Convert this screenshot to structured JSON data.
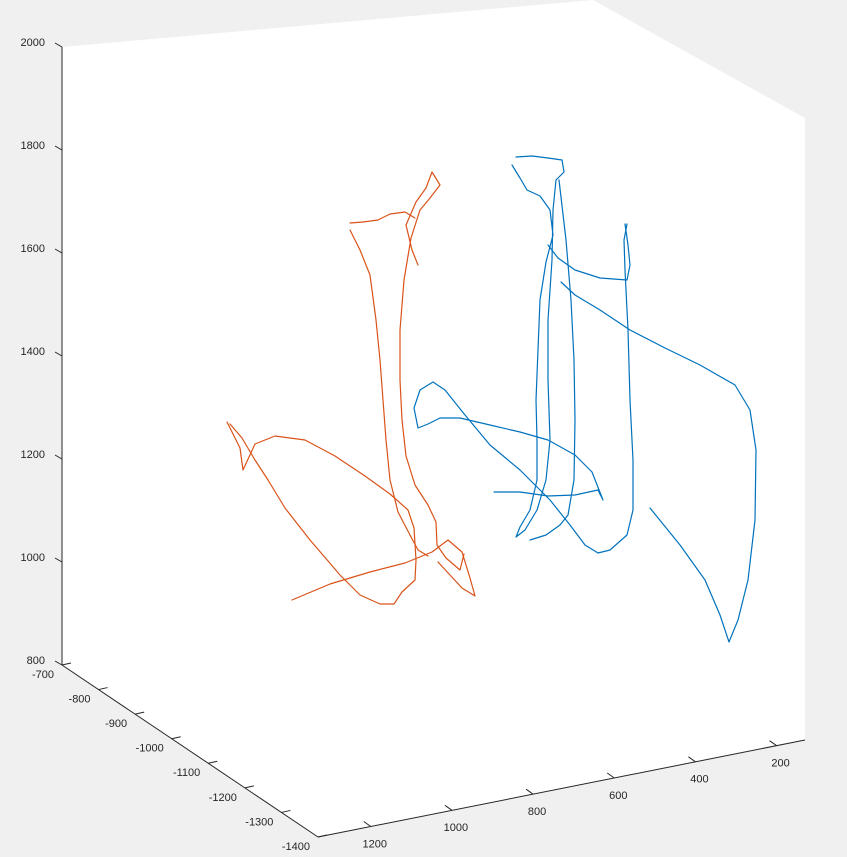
{
  "chart_data": {
    "type": "line3d",
    "title": "",
    "xlabel": "",
    "ylabel": "",
    "zlabel": "",
    "grid": false,
    "axes": {
      "x": {
        "ticks": [
          1200,
          1000,
          800,
          600,
          400,
          200
        ],
        "labels": [
          "1200",
          "1000",
          "800",
          "600",
          "400",
          "200"
        ],
        "lim": [
          1330,
          130
        ]
      },
      "y": {
        "ticks": [
          -700,
          -800,
          -900,
          -1000,
          -1100,
          -1200,
          -1300,
          -1400
        ],
        "labels": [
          "-700",
          "-800",
          "-900",
          "-1000",
          "-1100",
          "-1200",
          "-1300",
          "-1400"
        ],
        "lim": [
          -700,
          -1400
        ]
      },
      "z": {
        "ticks": [
          800,
          1000,
          1200,
          1400,
          1600,
          1800,
          2000
        ],
        "labels": [
          "800",
          "1000",
          "1200",
          "1400",
          "1600",
          "1800",
          "2000"
        ],
        "lim": [
          800,
          2000
        ]
      }
    },
    "series": [
      {
        "color": "#d95319",
        "paths": [
          [
            [
              227,
              422
            ],
            [
              240,
              448
            ],
            [
              243,
              470
            ],
            [
              255,
              444
            ],
            [
              275,
              436
            ],
            [
              305,
              440
            ],
            [
              335,
              456
            ],
            [
              365,
              476
            ],
            [
              390,
              494
            ],
            [
              408,
              510
            ],
            [
              414,
              528
            ],
            [
              416,
              560
            ],
            [
              415,
              580
            ],
            [
              402,
              592
            ],
            [
              394,
              604
            ],
            [
              380,
              604
            ],
            [
              360,
              595
            ],
            [
              340,
              575
            ],
            [
              310,
              540
            ],
            [
              285,
              508
            ],
            [
              268,
              480
            ],
            [
              255,
              460
            ],
            [
              242,
              438
            ],
            [
              230,
              424
            ]
          ],
          [
            [
              292,
              600
            ],
            [
              330,
              584
            ],
            [
              370,
              572
            ],
            [
              405,
              563
            ],
            [
              432,
              552
            ],
            [
              448,
              540
            ],
            [
              462,
              552
            ],
            [
              470,
              578
            ],
            [
              475,
              596
            ],
            [
              462,
              588
            ],
            [
              450,
              575
            ],
            [
              438,
              562
            ]
          ],
          [
            [
              350,
              230
            ],
            [
              360,
              250
            ],
            [
              370,
              275
            ],
            [
              376,
              320
            ],
            [
              380,
              360
            ],
            [
              383,
              400
            ],
            [
              386,
              440
            ],
            [
              390,
              480
            ],
            [
              398,
              512
            ],
            [
              410,
              535
            ],
            [
              418,
              550
            ],
            [
              428,
              556
            ]
          ],
          [
            [
              350,
              223
            ],
            [
              363,
              222
            ],
            [
              378,
              220
            ],
            [
              390,
              214
            ],
            [
              405,
              212
            ],
            [
              415,
              218
            ]
          ],
          [
            [
              418,
              265
            ],
            [
              412,
              250
            ],
            [
              406,
              225
            ],
            [
              416,
              202
            ],
            [
              426,
              188
            ],
            [
              432,
              172
            ],
            [
              440,
              185
            ],
            [
              430,
              198
            ],
            [
              420,
              210
            ],
            [
              411,
              238
            ],
            [
              404,
              280
            ],
            [
              400,
              330
            ],
            [
              400,
              380
            ],
            [
              402,
              420
            ],
            [
              406,
              456
            ],
            [
              415,
              485
            ],
            [
              428,
              505
            ],
            [
              436,
              522
            ],
            [
              437,
              545
            ],
            [
              446,
              558
            ],
            [
              460,
              570
            ],
            [
              464,
              554
            ]
          ]
        ]
      },
      {
        "color": "#0072bd",
        "paths": [
          [
            [
              516,
              157
            ],
            [
              532,
              156
            ],
            [
              548,
              158
            ],
            [
              562,
              160
            ],
            [
              564,
              172
            ],
            [
              556,
              180
            ],
            [
              553,
              210
            ],
            [
              552,
              260
            ],
            [
              548,
              320
            ],
            [
              548,
              380
            ],
            [
              550,
              440
            ],
            [
              546,
              480
            ],
            [
              537,
              510
            ],
            [
              525,
              530
            ],
            [
              516,
              537
            ],
            [
              520,
              527
            ],
            [
              530,
              510
            ],
            [
              537,
              480
            ],
            [
              537,
              440
            ],
            [
              536,
              400
            ],
            [
              538,
              350
            ],
            [
              540,
              300
            ],
            [
              546,
              262
            ],
            [
              553,
              235
            ],
            [
              550,
              210
            ],
            [
              540,
              196
            ],
            [
              527,
              190
            ],
            [
              520,
              178
            ],
            [
              512,
              165
            ]
          ],
          [
            [
              559,
              180
            ],
            [
              566,
              240
            ],
            [
              571,
              300
            ],
            [
              574,
              360
            ],
            [
              575,
              420
            ],
            [
              574,
              480
            ],
            [
              568,
              515
            ],
            [
              560,
              525
            ],
            [
              546,
              535
            ],
            [
              530,
              540
            ]
          ],
          [
            [
              627,
              224
            ],
            [
              624,
              240
            ],
            [
              625,
              270
            ],
            [
              628,
              330
            ],
            [
              630,
              400
            ],
            [
              633,
              460
            ],
            [
              633,
              510
            ],
            [
              627,
              535
            ],
            [
              610,
              550
            ],
            [
              598,
              553
            ],
            [
              585,
              545
            ],
            [
              570,
              525
            ],
            [
              550,
              500
            ],
            [
              520,
              470
            ],
            [
              490,
              445
            ],
            [
              465,
              415
            ],
            [
              445,
              390
            ],
            [
              433,
              382
            ],
            [
              420,
              390
            ],
            [
              414,
              408
            ],
            [
              418,
              428
            ],
            [
              428,
              424
            ],
            [
              440,
              418
            ],
            [
              460,
              418
            ],
            [
              490,
              425
            ],
            [
              520,
              432
            ],
            [
              548,
              440
            ],
            [
              575,
              455
            ],
            [
              592,
              472
            ],
            [
              603,
              500
            ],
            [
              598,
              490
            ],
            [
              575,
              495
            ],
            [
              548,
              496
            ],
            [
              520,
              492
            ],
            [
              494,
              492
            ]
          ],
          [
            [
              548,
              245
            ],
            [
              558,
              258
            ],
            [
              575,
              270
            ],
            [
              600,
              278
            ],
            [
              627,
              280
            ],
            [
              630,
              265
            ],
            [
              628,
              245
            ],
            [
              625,
              224
            ]
          ],
          [
            [
              561,
              282
            ],
            [
              575,
              295
            ],
            [
              600,
              310
            ],
            [
              630,
              330
            ],
            [
              665,
              348
            ],
            [
              700,
              365
            ],
            [
              735,
              385
            ],
            [
              750,
              410
            ],
            [
              756,
              450
            ],
            [
              755,
              520
            ],
            [
              748,
              580
            ],
            [
              738,
              620
            ],
            [
              729,
              642
            ],
            [
              720,
              615
            ],
            [
              705,
              580
            ],
            [
              680,
              545
            ],
            [
              650,
              508
            ]
          ]
        ]
      }
    ]
  }
}
